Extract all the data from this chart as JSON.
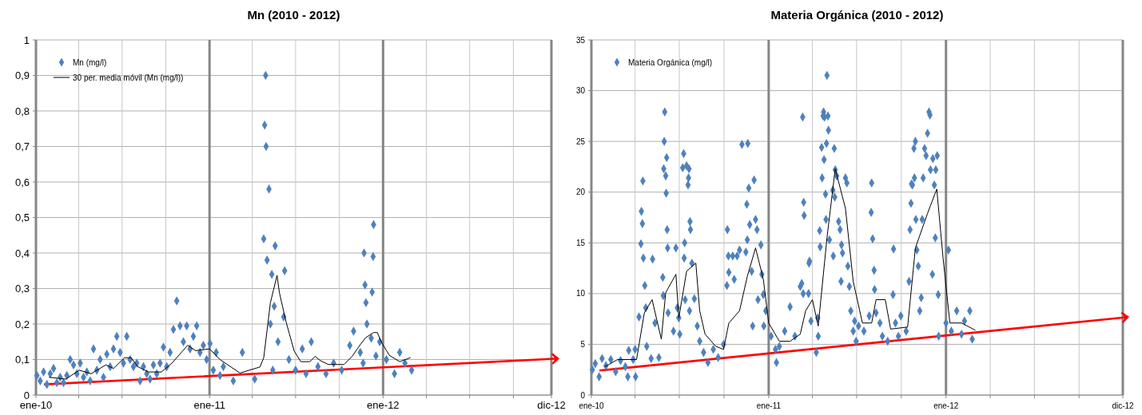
{
  "chart_data": [
    {
      "type": "scatter",
      "title": "Mn (2010 - 2012)",
      "grid": true,
      "legend": "top left",
      "xlim": [
        "2010-01-01",
        "2012-12-20"
      ],
      "xticks": [
        {
          "value": "2010-01-01",
          "label": "ene-10"
        },
        {
          "value": "2010-04-01",
          "label": null
        },
        {
          "value": "2010-07-01",
          "label": null
        },
        {
          "value": "2010-10-01",
          "label": null
        },
        {
          "value": "2011-01-01",
          "label": "ene-11"
        },
        {
          "value": "2011-04-01",
          "label": null
        },
        {
          "value": "2011-07-01",
          "label": null
        },
        {
          "value": "2011-10-01",
          "label": null
        },
        {
          "value": "2012-01-01",
          "label": "ene-12"
        },
        {
          "value": "2012-04-01",
          "label": null
        },
        {
          "value": "2012-07-01",
          "label": null
        },
        {
          "value": "2012-10-01",
          "label": null
        },
        {
          "value": "2012-12-20",
          "label": "dic-12"
        }
      ],
      "ylim": [
        0,
        1
      ],
      "yticks": [
        0,
        {
          "value": 0.1,
          "label": "0,1"
        },
        {
          "value": 0.2,
          "label": "0,2"
        },
        {
          "value": 0.3,
          "label": "0,3"
        },
        {
          "value": 0.4,
          "label": "0,4"
        },
        {
          "value": 0.5,
          "label": "0,5"
        },
        {
          "value": 0.6,
          "label": "0,6"
        },
        {
          "value": 0.7,
          "label": "0,7"
        },
        {
          "value": 0.8,
          "label": "0,8"
        },
        {
          "value": 0.9,
          "label": "0,9"
        },
        1
      ],
      "series": [
        {
          "name": "Mn (mg/l)",
          "marker": "diamond",
          "color": "#4f81bd",
          "x": [
            "2010-01-03",
            "2010-01-10",
            "2010-01-17",
            "2010-01-24",
            "2010-01-31",
            "2010-02-07",
            "2010-02-14",
            "2010-02-21",
            "2010-02-28",
            "2010-03-07",
            "2010-03-14",
            "2010-03-21",
            "2010-03-28",
            "2010-04-04",
            "2010-04-11",
            "2010-04-18",
            "2010-04-25",
            "2010-05-02",
            "2010-05-09",
            "2010-05-16",
            "2010-05-23",
            "2010-05-30",
            "2010-06-06",
            "2010-06-13",
            "2010-06-20",
            "2010-06-27",
            "2010-07-04",
            "2010-07-11",
            "2010-07-18",
            "2010-07-25",
            "2010-08-01",
            "2010-08-08",
            "2010-08-15",
            "2010-08-22",
            "2010-08-29",
            "2010-09-05",
            "2010-09-12",
            "2010-09-19",
            "2010-09-26",
            "2010-10-03",
            "2010-10-10",
            "2010-10-17",
            "2010-10-24",
            "2010-10-31",
            "2010-11-07",
            "2010-11-14",
            "2010-11-21",
            "2010-11-28",
            "2010-12-05",
            "2010-12-12",
            "2010-12-19",
            "2010-12-26",
            "2011-01-02",
            "2011-01-09",
            "2011-01-15",
            "2011-01-23",
            "2011-01-30",
            "2011-02-20",
            "2011-03-11",
            "2011-04-06",
            "2011-04-25",
            "2011-04-27",
            "2011-04-29",
            "2011-04-30",
            "2011-05-02",
            "2011-05-06",
            "2011-05-09",
            "2011-05-12",
            "2011-05-14",
            "2011-05-17",
            "2011-05-19",
            "2011-05-25",
            "2011-06-06",
            "2011-06-08",
            "2011-06-17",
            "2011-07-01",
            "2011-07-15",
            "2011-07-23",
            "2011-08-03",
            "2011-08-17",
            "2011-09-03",
            "2011-09-19",
            "2011-10-06",
            "2011-10-23",
            "2011-10-31",
            "2011-11-14",
            "2011-11-20",
            "2011-11-22",
            "2011-11-24",
            "2011-11-26",
            "2011-11-28",
            "2011-12-07",
            "2011-12-09",
            "2011-12-11",
            "2011-12-12",
            "2011-12-17",
            "2011-12-25",
            "2012-01-08",
            "2012-01-25",
            "2012-02-05",
            "2012-02-16",
            "2012-03-01"
          ],
          "values": [
            0.055,
            0.04,
            0.065,
            0.03,
            0.06,
            0.075,
            0.035,
            0.05,
            0.035,
            0.055,
            0.1,
            0.085,
            0.06,
            0.09,
            0.05,
            0.065,
            0.04,
            0.13,
            0.07,
            0.1,
            0.05,
            0.115,
            0.08,
            0.13,
            0.165,
            0.12,
            0.09,
            0.165,
            0.1,
            0.08,
            0.09,
            0.04,
            0.08,
            0.06,
            0.045,
            0.085,
            0.06,
            0.09,
            0.135,
            0.08,
            0.12,
            0.185,
            0.265,
            0.195,
            0.15,
            0.195,
            0.13,
            0.165,
            0.195,
            0.12,
            0.14,
            0.1,
            0.145,
            0.07,
            0.12,
            0.055,
            0.08,
            0.04,
            0.12,
            0.045,
            0.44,
            0.76,
            0.9,
            0.7,
            0.38,
            0.58,
            0.2,
            0.34,
            0.07,
            0.25,
            0.42,
            0.15,
            0.22,
            0.35,
            0.1,
            0.07,
            0.13,
            0.06,
            0.15,
            0.08,
            0.06,
            0.09,
            0.07,
            0.14,
            0.18,
            0.12,
            0.09,
            0.4,
            0.31,
            0.26,
            0.2,
            0.16,
            0.29,
            0.39,
            0.48,
            0.11,
            0.15,
            0.1,
            0.06,
            0.12,
            0.09,
            0.07
          ]
        },
        {
          "name": "30 per. media móvil (Mn (mg/l))",
          "type": "line",
          "marker": "none",
          "color": "#000000",
          "x": [
            "2010-01-29",
            "2010-03-05",
            "2010-04-02",
            "2010-04-27",
            "2010-05-28",
            "2010-06-13",
            "2010-07-06",
            "2010-07-20",
            "2010-08-03",
            "2010-08-25",
            "2010-09-22",
            "2010-10-14",
            "2010-11-16",
            "2010-12-03",
            "2011-01-01",
            "2011-01-23",
            "2011-03-06",
            "2011-04-17",
            "2011-04-25",
            "2011-05-09",
            "2011-05-23",
            "2011-05-28",
            "2011-06-11",
            "2011-06-28",
            "2011-07-12",
            "2011-07-31",
            "2011-08-11",
            "2011-08-22",
            "2011-09-08",
            "2011-10-11",
            "2011-10-28",
            "2011-11-14",
            "2011-11-25",
            "2011-12-12",
            "2011-12-20",
            "2011-12-28",
            "2012-01-14",
            "2012-02-05",
            "2012-02-27"
          ],
          "values": [
            0.05,
            0.045,
            0.07,
            0.06,
            0.085,
            0.075,
            0.105,
            0.105,
            0.08,
            0.065,
            0.065,
            0.09,
            0.14,
            0.125,
            0.13,
            0.1,
            0.062,
            0.079,
            0.105,
            0.26,
            0.337,
            0.288,
            0.206,
            0.124,
            0.094,
            0.094,
            0.109,
            0.097,
            0.086,
            0.086,
            0.109,
            0.142,
            0.161,
            0.176,
            0.176,
            0.15,
            0.112,
            0.094,
            0.105
          ]
        }
      ]
    },
    {
      "type": "scatter",
      "title": "Materia Orgánica (2010 - 2012)",
      "grid": true,
      "legend": "top left",
      "xlim": [
        "2010-01-01",
        "2012-12-30"
      ],
      "xticks": [
        {
          "value": "2010-01-01",
          "label": "ene-10"
        },
        {
          "value": "2010-04-01",
          "label": null
        },
        {
          "value": "2010-07-01",
          "label": null
        },
        {
          "value": "2010-10-01",
          "label": null
        },
        {
          "value": "2011-01-01",
          "label": "ene-11"
        },
        {
          "value": "2011-04-01",
          "label": null
        },
        {
          "value": "2011-07-01",
          "label": null
        },
        {
          "value": "2011-10-01",
          "label": null
        },
        {
          "value": "2012-01-01",
          "label": "ene-12"
        },
        {
          "value": "2012-04-01",
          "label": null
        },
        {
          "value": "2012-07-01",
          "label": null
        },
        {
          "value": "2012-10-01",
          "label": null
        },
        {
          "value": "2012-12-30",
          "label": "dic-12"
        }
      ],
      "ylim": [
        0,
        35
      ],
      "yticks": [
        0,
        5,
        10,
        15,
        20,
        25,
        30,
        35
      ],
      "series": [
        {
          "name": "Materia Orgánica (mg/l)",
          "marker": "diamond",
          "color": "#4f81bd",
          "x": [
            "2010-01-03",
            "2010-01-09",
            "2010-01-17",
            "2010-01-23",
            "2010-01-31",
            "2010-02-10",
            "2010-02-20",
            "2010-03-02",
            "2010-03-12",
            "2010-03-17",
            "2010-03-19",
            "2010-03-28",
            "2010-04-01",
            "2010-04-02",
            "2010-04-09",
            "2010-04-13",
            "2010-04-14",
            "2010-04-16",
            "2010-04-17",
            "2010-04-18",
            "2010-04-21",
            "2010-04-23",
            "2010-04-25",
            "2010-05-04",
            "2010-05-07",
            "2010-05-12",
            "2010-05-20",
            "2010-05-28",
            "2010-05-29",
            "2010-05-30",
            "2010-05-31",
            "2010-06-01",
            "2010-06-03",
            "2010-06-04",
            "2010-06-05",
            "2010-06-06",
            "2010-06-07",
            "2010-06-08",
            "2010-06-19",
            "2010-06-24",
            "2010-06-27",
            "2010-06-30",
            "2010-07-02",
            "2010-07-08",
            "2010-07-10",
            "2010-07-11",
            "2010-07-12",
            "2010-07-13",
            "2010-07-16",
            "2010-07-19",
            "2010-07-20",
            "2010-07-21",
            "2010-07-22",
            "2010-07-23",
            "2010-07-24",
            "2010-07-27",
            "2010-08-01",
            "2010-08-07",
            "2010-08-12",
            "2010-08-20",
            "2010-08-29",
            "2010-09-09",
            "2010-09-19",
            "2010-09-30",
            "2010-10-07",
            "2010-10-08",
            "2010-10-10",
            "2010-10-11",
            "2010-10-19",
            "2010-10-22",
            "2010-10-28",
            "2010-11-02",
            "2010-11-07",
            "2010-11-15",
            "2010-11-17",
            "2010-11-18",
            "2010-11-19",
            "2010-11-21",
            "2010-11-23",
            "2010-11-27",
            "2010-11-29",
            "2010-12-02",
            "2010-12-05",
            "2010-12-08",
            "2010-12-10",
            "2010-12-16",
            "2010-12-18",
            "2010-12-21",
            "2010-12-22",
            "2010-12-26",
            "2011-01-06",
            "2011-01-15",
            "2011-01-17",
            "2011-01-23",
            "2011-02-03",
            "2011-02-14",
            "2011-02-24",
            "2011-03-07",
            "2011-03-10",
            "2011-03-12",
            "2011-03-13",
            "2011-03-14",
            "2011-03-15",
            "2011-03-24",
            "2011-03-25",
            "2011-03-26",
            "2011-03-29",
            "2011-04-09",
            "2011-04-12",
            "2011-04-13",
            "2011-04-16",
            "2011-04-17",
            "2011-04-20",
            "2011-04-21",
            "2011-04-23",
            "2011-04-24",
            "2011-04-25",
            "2011-04-26",
            "2011-04-28",
            "2011-04-29",
            "2011-04-30",
            "2011-05-01",
            "2011-05-03",
            "2011-05-04",
            "2011-05-06",
            "2011-05-13",
            "2011-05-14",
            "2011-05-16",
            "2011-05-17",
            "2011-05-18",
            "2011-05-21",
            "2011-05-25",
            "2011-05-28",
            "2011-05-30",
            "2011-05-31",
            "2011-06-02",
            "2011-06-08",
            "2011-06-11",
            "2011-06-13",
            "2011-06-16",
            "2011-06-19",
            "2011-06-24",
            "2011-06-27",
            "2011-06-30",
            "2011-07-05",
            "2011-07-16",
            "2011-07-27",
            "2011-07-31",
            "2011-08-01",
            "2011-08-03",
            "2011-08-06",
            "2011-08-07",
            "2011-08-10",
            "2011-08-18",
            "2011-08-23",
            "2011-09-03",
            "2011-09-14",
            "2011-09-15",
            "2011-09-19",
            "2011-09-25",
            "2011-09-30",
            "2011-10-11",
            "2011-10-17",
            "2011-10-19",
            "2011-10-21",
            "2011-10-22",
            "2011-10-24",
            "2011-10-27",
            "2011-10-28",
            "2011-10-30",
            "2011-10-31",
            "2011-11-02",
            "2011-11-05",
            "2011-11-08",
            "2011-11-11",
            "2011-11-13",
            "2011-11-15",
            "2011-11-18",
            "2011-11-21",
            "2011-11-24",
            "2011-11-27",
            "2011-11-29",
            "2011-11-30",
            "2011-12-04",
            "2011-12-05",
            "2011-12-08",
            "2011-12-10",
            "2011-12-11",
            "2011-12-14",
            "2011-12-16",
            "2011-12-17",
            "2012-01-01",
            "2012-01-06",
            "2012-01-12",
            "2012-01-23",
            "2012-02-02",
            "2012-02-08",
            "2012-02-19",
            "2012-02-24"
          ],
          "values": [
            2.5,
            3.1,
            1.8,
            3.6,
            2.9,
            3.5,
            2.3,
            3.4,
            2.8,
            1.8,
            4.4,
            3.5,
            4.5,
            1.8,
            7.7,
            14.9,
            18.1,
            16.9,
            21.1,
            13.5,
            10.8,
            8.6,
            4.8,
            3.6,
            13.4,
            7.1,
            3.7,
            11.6,
            9.8,
            22.3,
            25,
            27.9,
            21.6,
            19.9,
            23.4,
            16.3,
            14.5,
            8.1,
            6.3,
            14.5,
            8.6,
            7.6,
            6,
            22.4,
            23.8,
            13.5,
            15,
            9.4,
            22.6,
            20.7,
            21.4,
            22.3,
            8.3,
            17.1,
            16.3,
            13,
            9.5,
            6.8,
            5.3,
            4.2,
            3.2,
            4.5,
            3.7,
            5,
            10.8,
            16.3,
            13.7,
            12.1,
            13.7,
            11.4,
            13.7,
            14.3,
            24.7,
            14.1,
            18.8,
            15.3,
            24.8,
            20.4,
            16.8,
            12.2,
            6.8,
            21.2,
            17.3,
            16.3,
            9.4,
            14.8,
            11.9,
            9.9,
            6.8,
            8.3,
            5.8,
            4.5,
            3.2,
            4.8,
            6.3,
            8.7,
            5.8,
            10.7,
            11,
            27.4,
            10,
            19,
            17.7,
            10,
            13,
            13.2,
            7.3,
            4.2,
            7.6,
            5.8,
            16.2,
            14.6,
            24.4,
            21.4,
            27.5,
            27.9,
            23.2,
            27.4,
            19.8,
            17.3,
            24.8,
            31.5,
            27.5,
            26.1,
            15.3,
            20.2,
            13.7,
            24.3,
            19.5,
            22.2,
            21.6,
            17.1,
            16.3,
            11.2,
            14.8,
            14,
            21.4,
            20.9,
            12.7,
            10.7,
            8.3,
            6.3,
            7.3,
            5.3,
            6.8,
            6.3,
            7.8,
            18,
            20.9,
            15.4,
            12.3,
            10.4,
            8.1,
            7.1,
            5.8,
            5.3,
            9.9,
            14.4,
            7.1,
            5.8,
            7.8,
            6.3,
            11.2,
            16.3,
            18.9,
            20.8,
            20.7,
            24.3,
            21.4,
            25,
            17.3,
            14.3,
            12.7,
            8.3,
            9.6,
            17.3,
            21.4,
            24.3,
            23.6,
            25.8,
            27.9,
            27.6,
            22.2,
            11.9,
            23.3,
            20.7,
            15.5,
            22.2,
            23.6,
            9.9,
            5.8,
            7.1,
            14.3,
            6.3,
            8.3,
            6,
            7.3,
            8.3,
            5.5
          ]
        },
        {
          "type": "line",
          "marker": "none",
          "color": "#000000",
          "x": [
            "2010-01-29",
            "2010-02-24",
            "2010-04-04",
            "2010-04-20",
            "2010-05-06",
            "2010-05-25",
            "2010-06-03",
            "2010-06-24",
            "2010-06-30",
            "2010-07-16",
            "2010-08-04",
            "2010-08-12",
            "2010-08-23",
            "2010-09-14",
            "2010-09-30",
            "2010-10-11",
            "2010-11-02",
            "2010-11-18",
            "2010-12-05",
            "2010-12-21",
            "2011-01-01",
            "2011-01-23",
            "2011-02-14",
            "2011-03-07",
            "2011-03-18",
            "2011-04-01",
            "2011-04-13",
            "2011-05-01",
            "2011-05-18",
            "2011-06-08",
            "2011-06-24",
            "2011-07-13",
            "2011-08-01",
            "2011-08-10",
            "2011-08-29",
            "2011-09-09",
            "2011-10-14",
            "2011-10-30",
            "2011-11-24",
            "2011-12-13",
            "2011-12-26",
            "2012-01-09",
            "2012-02-02",
            "2012-03-01"
          ],
          "values": [
            2.8,
            3.5,
            3.5,
            8.1,
            9.4,
            5.5,
            10.1,
            11.9,
            7.6,
            12.2,
            13,
            8.3,
            6,
            4.8,
            4.5,
            7.1,
            8.3,
            11.7,
            14.5,
            11.4,
            7.1,
            5.3,
            5.3,
            6,
            8.3,
            9.4,
            6.8,
            15.5,
            22.3,
            18.4,
            11.2,
            7.1,
            7.1,
            9.4,
            9.4,
            6.5,
            6.7,
            14.5,
            17.9,
            20.3,
            13.5,
            7.1,
            7.1,
            6.4
          ]
        }
      ]
    }
  ]
}
